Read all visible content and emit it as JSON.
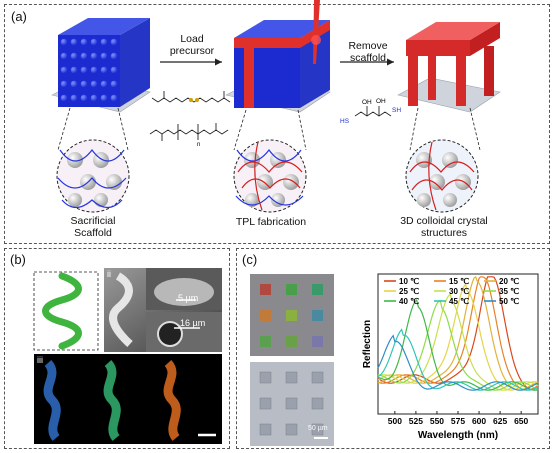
{
  "panel_a": {
    "label": "(a)",
    "step1_label": "Load\nprecursor",
    "step2_label": "Remove\nscaffold",
    "caption1": "Sacrificial\nScaffold",
    "caption2": "TPL fabrication",
    "caption3": "3D colloidal crystal\nstructures",
    "monomer_subscript": "n",
    "thiol_labels": [
      "OH",
      "OH",
      "SH",
      "HS"
    ]
  },
  "panel_b": {
    "label": "(b)",
    "sub_ii": "ii",
    "sub_iii": "iii",
    "scale1": "5 µm",
    "scale2": "16 µm"
  },
  "panel_c": {
    "label": "(c)",
    "scale": "50 µm"
  },
  "chart_data": {
    "type": "line",
    "xlabel": "Wavelength (nm)",
    "ylabel": "Reflection",
    "xlim": [
      480,
      670
    ],
    "xticks": [
      500,
      525,
      550,
      575,
      600,
      625,
      650
    ],
    "legend_position": "top",
    "series": [
      {
        "name": "10 ℃",
        "color": "#d9481c",
        "peak": 615,
        "height": 0.95
      },
      {
        "name": "15 ℃",
        "color": "#e8812a",
        "peak": 605,
        "height": 0.94
      },
      {
        "name": "20 ℃",
        "color": "#e2b23a",
        "peak": 597,
        "height": 0.9
      },
      {
        "name": "25 ℃",
        "color": "#e6d448",
        "peak": 585,
        "height": 0.83
      },
      {
        "name": "30 ℃",
        "color": "#c8e04c",
        "peak": 567,
        "height": 0.74
      },
      {
        "name": "35 ℃",
        "color": "#8fdc4a",
        "peak": 555,
        "height": 0.68
      },
      {
        "name": "40 ℃",
        "color": "#3fb84a",
        "peak": 527,
        "height": 0.63
      },
      {
        "name": "45 ℃",
        "color": "#2fc6b8",
        "peak": 510,
        "height": 0.4
      },
      {
        "name": "50 ℃",
        "color": "#2f8ec8",
        "peak": 500,
        "height": 0.35
      }
    ]
  }
}
